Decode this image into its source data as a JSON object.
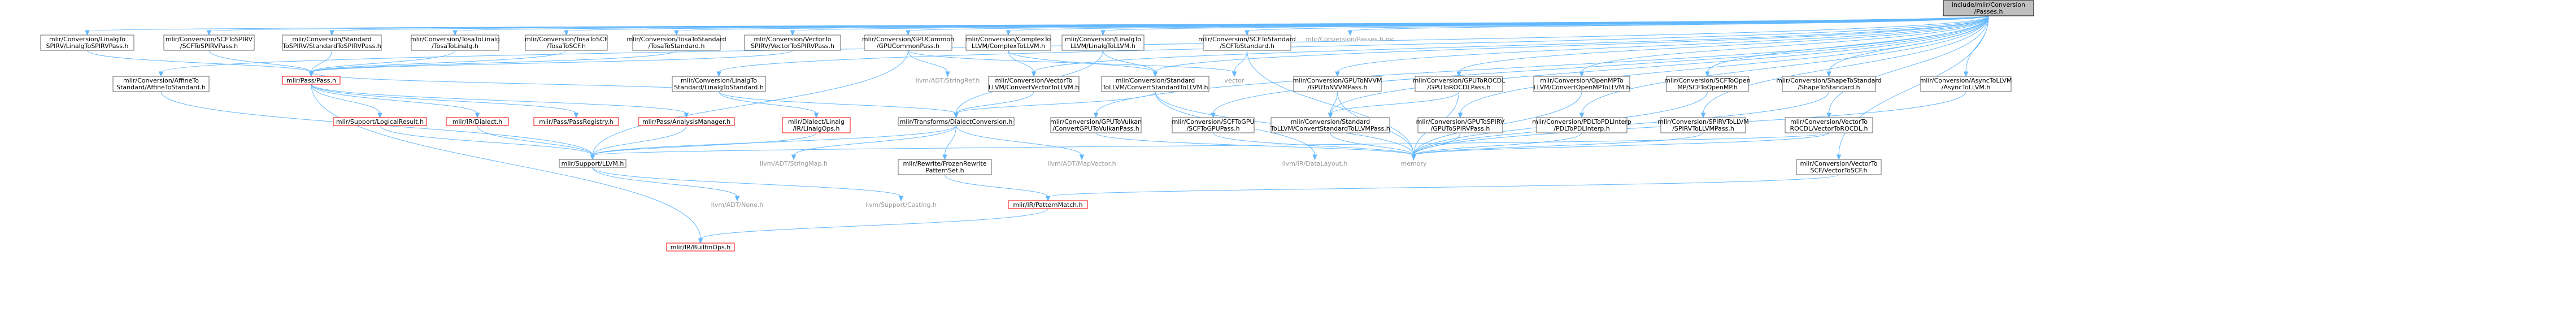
{
  "nodes": [
    {
      "id": "root",
      "lines": [
        "include/mlir/Conversion",
        "/Passes.h"
      ],
      "style": "root"
    },
    {
      "id": "linalgspirv",
      "lines": [
        "mlir/Conversion/LinalgTo",
        "SPIRV/LinalgToSPIRVPass.h"
      ]
    },
    {
      "id": "scfspirv",
      "lines": [
        "mlir/Conversion/SCFToSPIRV",
        "/SCFToSPIRVPass.h"
      ]
    },
    {
      "id": "stdspirv",
      "lines": [
        "mlir/Conversion/Standard",
        "ToSPIRV/StandardToSPIRVPass.h"
      ]
    },
    {
      "id": "tosalinalg",
      "lines": [
        "mlir/Conversion/TosaToLinalg",
        "/TosaToLinalg.h"
      ]
    },
    {
      "id": "tosascf",
      "lines": [
        "mlir/Conversion/TosaToSCF",
        "/TosaToSCF.h"
      ]
    },
    {
      "id": "tosastd",
      "lines": [
        "mlir/Conversion/TosaToStandard",
        "/TosaToStandard.h"
      ]
    },
    {
      "id": "vecspirv",
      "lines": [
        "mlir/Conversion/VectorTo",
        "SPIRV/VectorToSPIRVPass.h"
      ]
    },
    {
      "id": "gpucommon",
      "lines": [
        "mlir/Conversion/GPUCommon",
        "/GPUCommonPass.h"
      ]
    },
    {
      "id": "complexllvm",
      "lines": [
        "mlir/Conversion/ComplexTo",
        "LLVM/ComplexToLLVM.h"
      ]
    },
    {
      "id": "linalgllvm",
      "lines": [
        "mlir/Conversion/LinalgTo",
        "LLVM/LinalgToLLVM.h"
      ]
    },
    {
      "id": "scfstd",
      "lines": [
        "mlir/Conversion/SCFToStandard",
        "/SCFToStandard.h"
      ]
    },
    {
      "id": "passesinc",
      "lines": [
        "mlir/Conversion/Passes.h.inc"
      ],
      "style": "free"
    },
    {
      "id": "affinestd",
      "lines": [
        "mlir/Conversion/AffineTo",
        "Standard/AffineToStandard.h"
      ]
    },
    {
      "id": "passpass",
      "lines": [
        "mlir/Pass/Pass.h"
      ],
      "style": "red"
    },
    {
      "id": "linalgstd",
      "lines": [
        "mlir/Conversion/LinalgTo",
        "Standard/LinalgToStandard.h"
      ]
    },
    {
      "id": "stringref",
      "lines": [
        "llvm/ADT/StringRef.h"
      ],
      "style": "free"
    },
    {
      "id": "vecllvm",
      "lines": [
        "mlir/Conversion/VectorTo",
        "LLVM/ConvertVectorToLLVM.h"
      ]
    },
    {
      "id": "stdllvm",
      "lines": [
        "mlir/Conversion/Standard",
        "ToLLVM/ConvertStandardToLLVM.h"
      ]
    },
    {
      "id": "vector",
      "lines": [
        "vector"
      ],
      "style": "free"
    },
    {
      "id": "gpunvvm",
      "lines": [
        "mlir/Conversion/GPUToNVVM",
        "/GPUToNVVMPass.h"
      ]
    },
    {
      "id": "gpurocdl",
      "lines": [
        "mlir/Conversion/GPUToROCDL",
        "/GPUToROCDLPass.h"
      ]
    },
    {
      "id": "openmpllvm",
      "lines": [
        "mlir/Conversion/OpenMPTo",
        "LLVM/ConvertOpenMPToLLVM.h"
      ]
    },
    {
      "id": "scfopenmp",
      "lines": [
        "mlir/Conversion/SCFToOpen",
        "MP/SCFToOpenMP.h"
      ]
    },
    {
      "id": "shapestd",
      "lines": [
        "mlir/Conversion/ShapeToStandard",
        "/ShapeToStandard.h"
      ]
    },
    {
      "id": "asyncllvm",
      "lines": [
        "mlir/Conversion/AsyncToLLVM",
        "/AsyncToLLVM.h"
      ]
    },
    {
      "id": "logicalresult",
      "lines": [
        "mlir/Support/LogicalResult.h"
      ],
      "style": "red"
    },
    {
      "id": "irdialect",
      "lines": [
        "mlir/IR/Dialect.h"
      ],
      "style": "red"
    },
    {
      "id": "passregistry",
      "lines": [
        "mlir/Pass/PassRegistry.h"
      ],
      "style": "red"
    },
    {
      "id": "analysismgr",
      "lines": [
        "mlir/Pass/AnalysisManager.h"
      ],
      "style": "red"
    },
    {
      "id": "linalgops",
      "lines": [
        "mlir/Dialect/Linalg",
        "/IR/LinalgOps.h"
      ],
      "style": "red"
    },
    {
      "id": "dialectconv",
      "lines": [
        "mlir/Transforms/DialectConversion.h"
      ]
    },
    {
      "id": "gpuvulkan",
      "lines": [
        "mlir/Conversion/GPUToVulkan",
        "/ConvertGPUToVulkanPass.h"
      ]
    },
    {
      "id": "scfgpu",
      "lines": [
        "mlir/Conversion/SCFToGPU",
        "/SCFToGPUPass.h"
      ]
    },
    {
      "id": "stdllvmpass",
      "lines": [
        "mlir/Conversion/Standard",
        "ToLLVM/ConvertStandardToLLVMPass.h"
      ]
    },
    {
      "id": "gpuspirv",
      "lines": [
        "mlir/Conversion/GPUToSPIRV",
        "/GPUToSPIRVPass.h"
      ]
    },
    {
      "id": "pdlinterp",
      "lines": [
        "mlir/Conversion/PDLToPDLInterp",
        "/PDLToPDLInterp.h"
      ]
    },
    {
      "id": "spirvllvm",
      "lines": [
        "mlir/Conversion/SPIRVToLLVM",
        "/SPIRVToLLVMPass.h"
      ]
    },
    {
      "id": "vecrocdl",
      "lines": [
        "mlir/Conversion/VectorTo",
        "ROCDL/VectorToROCDL.h"
      ]
    },
    {
      "id": "supportllvm",
      "lines": [
        "mlir/Support/LLVM.h"
      ]
    },
    {
      "id": "stringmap",
      "lines": [
        "llvm/ADT/StringMap.h"
      ],
      "style": "free"
    },
    {
      "id": "frozen",
      "lines": [
        "mlir/Rewrite/FrozenRewrite",
        "PatternSet.h"
      ]
    },
    {
      "id": "mapvector",
      "lines": [
        "llvm/ADT/MapVector.h"
      ],
      "style": "free"
    },
    {
      "id": "datalayout",
      "lines": [
        "llvm/IR/DataLayout.h"
      ],
      "style": "free"
    },
    {
      "id": "memory",
      "lines": [
        "memory"
      ],
      "style": "free"
    },
    {
      "id": "vecscf",
      "lines": [
        "mlir/Conversion/VectorTo",
        "SCF/VectorToSCF.h"
      ]
    },
    {
      "id": "none",
      "lines": [
        "llvm/ADT/None.h"
      ],
      "style": "free"
    },
    {
      "id": "casting",
      "lines": [
        "llvm/Support/Casting.h"
      ],
      "style": "free"
    },
    {
      "id": "patternmatch",
      "lines": [
        "mlir/IR/PatternMatch.h"
      ],
      "style": "red"
    },
    {
      "id": "builtinops",
      "lines": [
        "mlir/IR/BuiltinOps.h"
      ],
      "style": "red"
    }
  ],
  "edges": [
    [
      "root",
      "linalgspirv"
    ],
    [
      "root",
      "scfspirv"
    ],
    [
      "root",
      "stdspirv"
    ],
    [
      "root",
      "tosalinalg"
    ],
    [
      "root",
      "tosascf"
    ],
    [
      "root",
      "tosastd"
    ],
    [
      "root",
      "vecspirv"
    ],
    [
      "root",
      "gpucommon"
    ],
    [
      "root",
      "complexllvm"
    ],
    [
      "root",
      "linalgllvm"
    ],
    [
      "root",
      "scfstd"
    ],
    [
      "root",
      "passesinc"
    ],
    [
      "root",
      "affinestd"
    ],
    [
      "root",
      "linalgstd"
    ],
    [
      "root",
      "vecllvm"
    ],
    [
      "root",
      "stdllvm"
    ],
    [
      "root",
      "gpunvvm"
    ],
    [
      "root",
      "gpurocdl"
    ],
    [
      "root",
      "openmpllvm"
    ],
    [
      "root",
      "scfopenmp"
    ],
    [
      "root",
      "shapestd"
    ],
    [
      "root",
      "asyncllvm"
    ],
    [
      "root",
      "gpuvulkan"
    ],
    [
      "root",
      "scfgpu"
    ],
    [
      "root",
      "stdllvmpass"
    ],
    [
      "root",
      "gpuspirv"
    ],
    [
      "root",
      "pdlinterp"
    ],
    [
      "root",
      "spirvllvm"
    ],
    [
      "root",
      "vecrocdl"
    ],
    [
      "root",
      "vecscf"
    ],
    [
      "linalgspirv",
      "passpass"
    ],
    [
      "scfspirv",
      "passpass"
    ],
    [
      "stdspirv",
      "passpass"
    ],
    [
      "tosalinalg",
      "passpass"
    ],
    [
      "tosascf",
      "passpass"
    ],
    [
      "tosastd",
      "passpass"
    ],
    [
      "vecspirv",
      "passpass"
    ],
    [
      "affinestd",
      "supportllvm"
    ],
    [
      "gpucommon",
      "supportllvm"
    ],
    [
      "gpucommon",
      "stringref"
    ],
    [
      "gpucommon",
      "vector"
    ],
    [
      "linalgstd",
      "dialectconv"
    ],
    [
      "linalgstd",
      "linalgops"
    ],
    [
      "linalgstd",
      "passpass"
    ],
    [
      "complexllvm",
      "stdllvm"
    ],
    [
      "complexllvm",
      "vecllvm"
    ],
    [
      "linalgllvm",
      "stdllvm"
    ],
    [
      "linalgllvm",
      "dialectconv"
    ],
    [
      "vecllvm",
      "dialectconv"
    ],
    [
      "stdllvm",
      "dialectconv"
    ],
    [
      "stdllvm",
      "datalayout"
    ],
    [
      "stdllvm",
      "memory"
    ],
    [
      "scfstd",
      "memory"
    ],
    [
      "scfstd",
      "vector"
    ],
    [
      "gpunvvm",
      "stdllvmpass"
    ],
    [
      "gpunvvm",
      "memory"
    ],
    [
      "gpurocdl",
      "stdllvmpass"
    ],
    [
      "gpurocdl",
      "memory"
    ],
    [
      "openmpllvm",
      "memory"
    ],
    [
      "scfopenmp",
      "memory"
    ],
    [
      "shapestd",
      "memory"
    ],
    [
      "asyncllvm",
      "memory"
    ],
    [
      "gpuvulkan",
      "memory"
    ],
    [
      "scfgpu",
      "memory"
    ],
    [
      "stdllvmpass",
      "memory"
    ],
    [
      "gpuspirv",
      "memory"
    ],
    [
      "pdlinterp",
      "memory"
    ],
    [
      "spirvllvm",
      "memory"
    ],
    [
      "vecrocdl",
      "memory"
    ],
    [
      "vecrocdl",
      "supportllvm"
    ],
    [
      "vecscf",
      "patternmatch"
    ],
    [
      "passpass",
      "logicalresult"
    ],
    [
      "passpass",
      "irdialect"
    ],
    [
      "passpass",
      "passregistry"
    ],
    [
      "passpass",
      "analysismgr"
    ],
    [
      "passpass",
      "builtinops"
    ],
    [
      "logicalresult",
      "supportllvm"
    ],
    [
      "irdialect",
      "supportllvm"
    ],
    [
      "analysismgr",
      "supportllvm"
    ],
    [
      "linalgops",
      "supportllvm"
    ],
    [
      "dialectconv",
      "supportllvm"
    ],
    [
      "dialectconv",
      "stringmap"
    ],
    [
      "dialectconv",
      "frozen"
    ],
    [
      "dialectconv",
      "mapvector"
    ],
    [
      "frozen",
      "patternmatch"
    ],
    [
      "supportllvm",
      "none"
    ],
    [
      "supportllvm",
      "casting"
    ],
    [
      "patternmatch",
      "builtinops"
    ]
  ]
}
